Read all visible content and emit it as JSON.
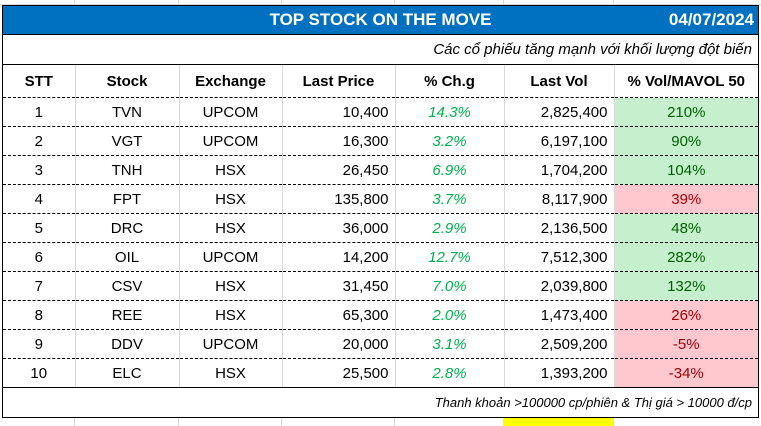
{
  "report": {
    "title": "TOP STOCK ON THE MOVE",
    "date": "04/07/2024",
    "subtitle": "Các cổ phiếu tăng mạnh với khối lượng đột biến",
    "footer_note": "Thanh khoản >100000 cp/phiên & Thị giá > 10000 đ/cp"
  },
  "colors": {
    "header_bg": "#0070c0",
    "change_text": "#00b050",
    "positive_fill": "#c6efce",
    "positive_text": "#006100",
    "negative_fill": "#ffc7ce",
    "negative_text": "#9c0006"
  },
  "table": {
    "columns": [
      "STT",
      "Stock",
      "Exchange",
      "Last Price",
      "% Ch.g",
      "Last Vol",
      "% Vol/MAVOL 50"
    ],
    "rows": [
      {
        "stt": "1",
        "stock": "TVN",
        "exchange": "UPCOM",
        "last_price": "10,400",
        "change": "14.3%",
        "last_vol": "2,825,400",
        "vol_ratio": "210%",
        "status": "pos"
      },
      {
        "stt": "2",
        "stock": "VGT",
        "exchange": "UPCOM",
        "last_price": "16,300",
        "change": "3.2%",
        "last_vol": "6,197,100",
        "vol_ratio": "90%",
        "status": "pos"
      },
      {
        "stt": "3",
        "stock": "TNH",
        "exchange": "HSX",
        "last_price": "26,450",
        "change": "6.9%",
        "last_vol": "1,704,200",
        "vol_ratio": "104%",
        "status": "pos"
      },
      {
        "stt": "4",
        "stock": "FPT",
        "exchange": "HSX",
        "last_price": "135,800",
        "change": "3.7%",
        "last_vol": "8,117,900",
        "vol_ratio": "39%",
        "status": "neg"
      },
      {
        "stt": "5",
        "stock": "DRC",
        "exchange": "HSX",
        "last_price": "36,000",
        "change": "2.9%",
        "last_vol": "2,136,500",
        "vol_ratio": "48%",
        "status": "pos"
      },
      {
        "stt": "6",
        "stock": "OIL",
        "exchange": "UPCOM",
        "last_price": "14,200",
        "change": "12.7%",
        "last_vol": "7,512,300",
        "vol_ratio": "282%",
        "status": "pos"
      },
      {
        "stt": "7",
        "stock": "CSV",
        "exchange": "HSX",
        "last_price": "31,450",
        "change": "7.0%",
        "last_vol": "2,039,800",
        "vol_ratio": "132%",
        "status": "pos"
      },
      {
        "stt": "8",
        "stock": "REE",
        "exchange": "HSX",
        "last_price": "65,300",
        "change": "2.0%",
        "last_vol": "1,473,400",
        "vol_ratio": "26%",
        "status": "neg"
      },
      {
        "stt": "9",
        "stock": "DDV",
        "exchange": "UPCOM",
        "last_price": "20,000",
        "change": "3.1%",
        "last_vol": "2,509,200",
        "vol_ratio": "-5%",
        "status": "neg"
      },
      {
        "stt": "10",
        "stock": "ELC",
        "exchange": "HSX",
        "last_price": "25,500",
        "change": "2.8%",
        "last_vol": "1,393,200",
        "vol_ratio": "-34%",
        "status": "neg"
      }
    ]
  }
}
